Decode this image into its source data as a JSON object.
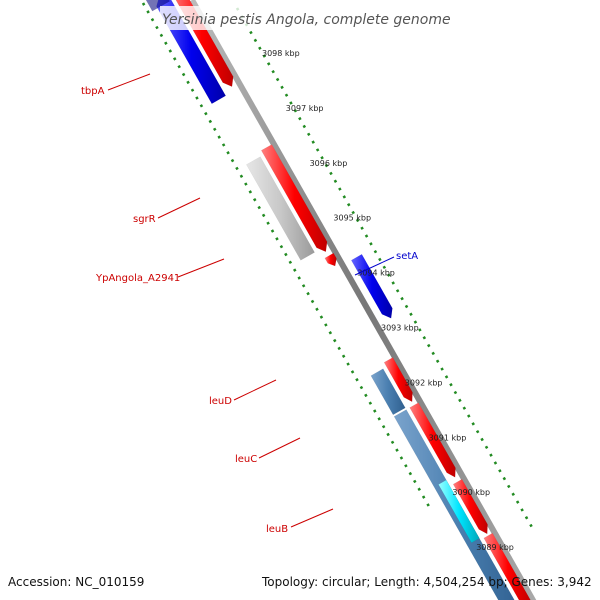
{
  "title": "Yersinia pestis Angola, complete genome",
  "ticks": [
    "3098 kbp",
    "3097 kbp",
    "3096 kbp",
    "3095 kbp",
    "3094 kbp",
    "3093 kbp",
    "3092 kbp",
    "3091 kbp",
    "3090 kbp",
    "3089 kbp"
  ],
  "genes": [
    {
      "label": "tbpA",
      "color": "#cc0000"
    },
    {
      "label": "sgrR",
      "color": "#cc0000"
    },
    {
      "label": "YpAngola_A2941",
      "color": "#cc0000"
    },
    {
      "label": "setA",
      "color": "#0000cc"
    },
    {
      "label": "leuD",
      "color": "#cc0000"
    },
    {
      "label": "leuC",
      "color": "#cc0000"
    },
    {
      "label": "leuB",
      "color": "#cc0000"
    }
  ],
  "colors": {
    "forward_cds": "#ff0000",
    "reverse_blue": "#0000ee",
    "steel_blue": "#4a7fb0",
    "gray_feature": "#c8c8c8",
    "cyan_feature": "#00e5ff",
    "backbone": "#888888",
    "dots": "#228b22"
  },
  "footer": {
    "accession": "Accession: NC_010159",
    "summary": "Topology: circular; Length: 4,504,254 bp; Genes: 3,942"
  }
}
